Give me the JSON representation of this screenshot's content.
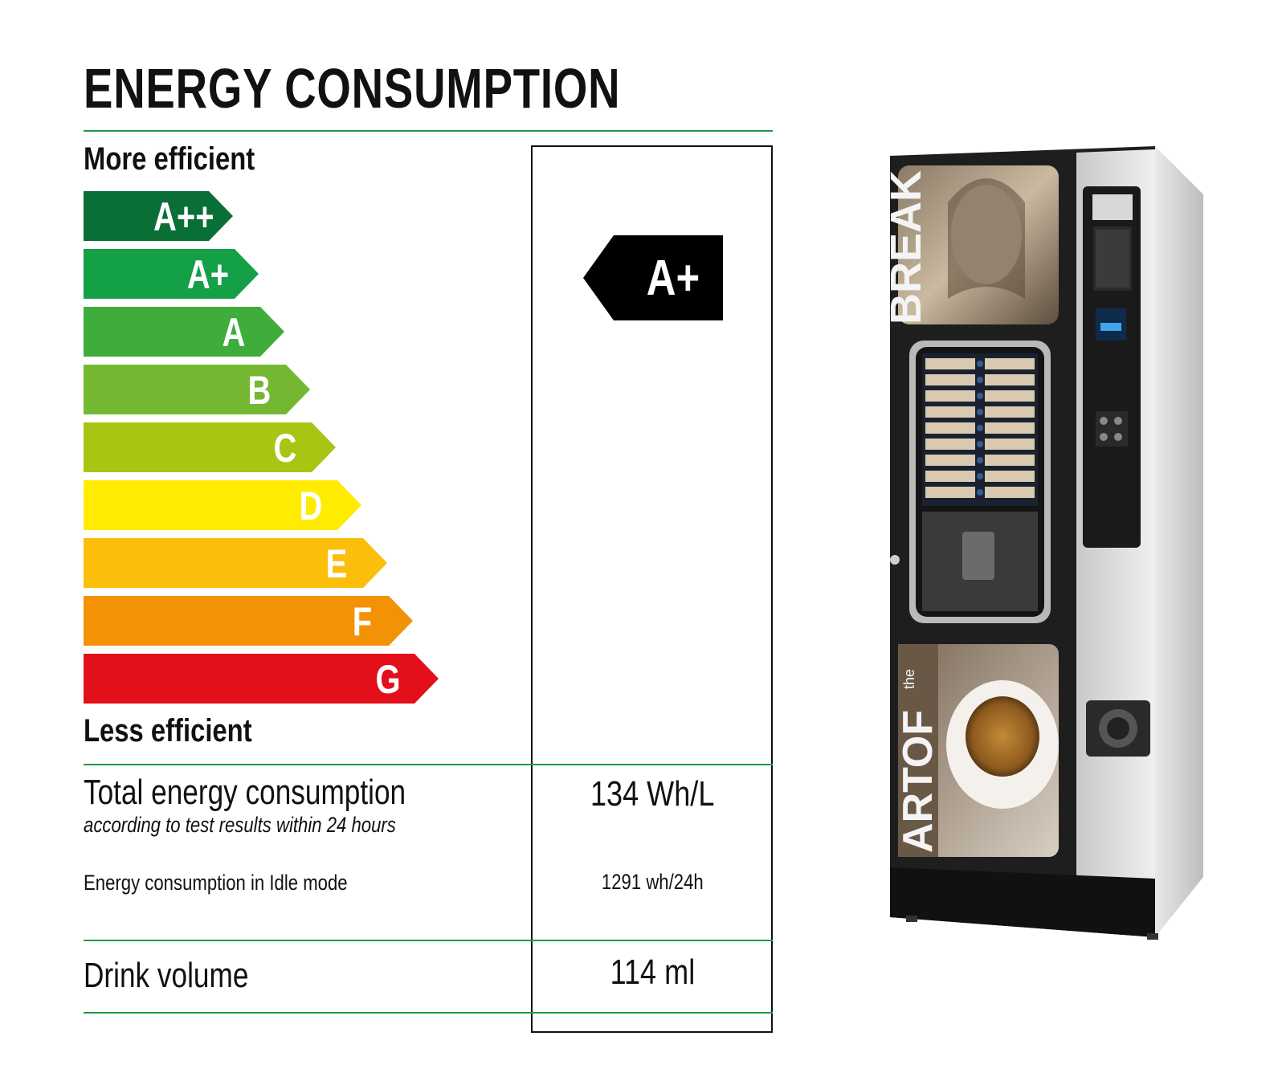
{
  "title": "ENERGY CONSUMPTION",
  "scale": {
    "top_label": "More efficient",
    "bottom_label": "Less efficient",
    "classes": [
      {
        "label": "A++",
        "color": "#0a6f36"
      },
      {
        "label": "A+",
        "color": "#13a047"
      },
      {
        "label": "A",
        "color": "#3fac3c"
      },
      {
        "label": "B",
        "color": "#74b832"
      },
      {
        "label": "C",
        "color": "#a6c613"
      },
      {
        "label": "D",
        "color": "#ffec00"
      },
      {
        "label": "E",
        "color": "#fbbe0a"
      },
      {
        "label": "F",
        "color": "#f39205"
      },
      {
        "label": "G",
        "color": "#e3101c"
      }
    ]
  },
  "rating": {
    "label": "A+",
    "color": "#000000"
  },
  "rows": {
    "total": {
      "label": "Total energy consumption",
      "note": "according to test results within 24 hours",
      "value": "134 Wh/L"
    },
    "idle": {
      "label": "Energy consumption in Idle mode",
      "value": "1291 wh/24h"
    },
    "volume": {
      "label": "Drink volume",
      "value": "114 ml"
    }
  },
  "machine_image": {
    "top_panel_text": "BREAK",
    "bottom_panel_text": "ARTOF",
    "bottom_panel_small_text": "the"
  }
}
